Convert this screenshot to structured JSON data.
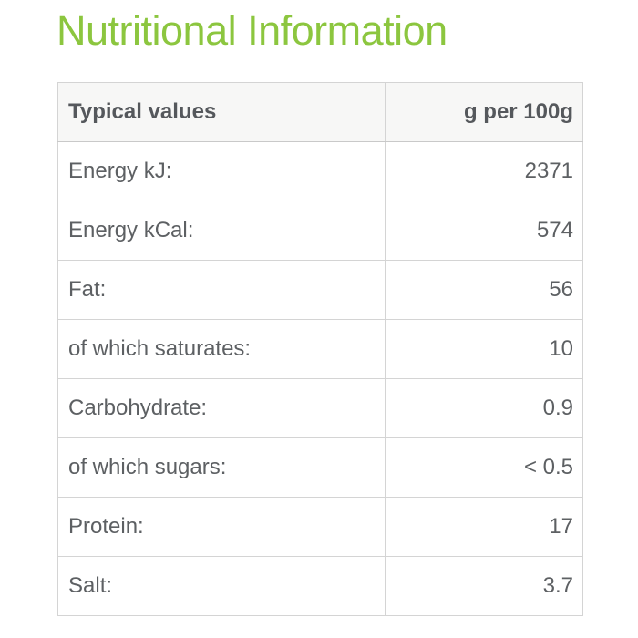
{
  "page": {
    "title": "Nutritional Information"
  },
  "table": {
    "headers": [
      "Typical values",
      "g per 100g"
    ],
    "rows": [
      {
        "label": "Energy kJ:",
        "value": "2371"
      },
      {
        "label": "Energy kCal:",
        "value": "574"
      },
      {
        "label": "Fat:",
        "value": "56"
      },
      {
        "label": "of which saturates:",
        "value": "10"
      },
      {
        "label": "Carbohydrate:",
        "value": "0.9"
      },
      {
        "label": "of which sugars:",
        "value": "< 0.5"
      },
      {
        "label": "Protein:",
        "value": "17"
      },
      {
        "label": "Salt:",
        "value": "3.7"
      }
    ]
  },
  "colors": {
    "title_green": "#8cc63f",
    "body_text": "#5d6063",
    "header_text": "#55585c",
    "header_background": "#f7f7f6",
    "border": "#c9c9c9",
    "page_background": "#ffffff"
  }
}
